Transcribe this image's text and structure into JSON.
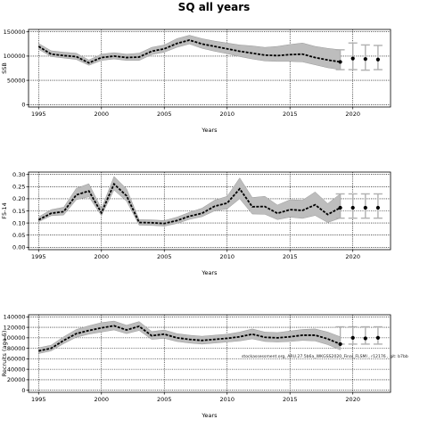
{
  "figure": {
    "title": "SQ all years",
    "watermark": "stockassessment.org, ARU.27.5b6a_WKGSS2020_Final_FLSMI , r12176 , git: b7bb"
  },
  "colors": {
    "band": "#bdbdbd",
    "band_edge": "#9a9a9a",
    "line": "#000000",
    "forecast_bar": "#b0b0b0",
    "grid": "#000000"
  },
  "chart_data": [
    {
      "type": "line",
      "title": "",
      "xlabel": "Years",
      "ylabel": "SSB",
      "xlim": [
        1994.2,
        2023.0
      ],
      "ylim": [
        -5000,
        155000
      ],
      "grid": true,
      "xticks": [
        1995,
        2000,
        2005,
        2010,
        2015,
        2020
      ],
      "yticks": [
        0,
        50000,
        100000,
        150000
      ],
      "x": [
        1995,
        1996,
        1997,
        1998,
        1999,
        2000,
        2001,
        2002,
        2003,
        2004,
        2005,
        2006,
        2007,
        2008,
        2009,
        2010,
        2011,
        2012,
        2013,
        2014,
        2015,
        2016,
        2017,
        2018,
        2019
      ],
      "series": [
        {
          "values": [
            120000,
            104000,
            101000,
            99000,
            86000,
            97000,
            100000,
            97000,
            98000,
            110000,
            115000,
            126000,
            133000,
            125000,
            120000,
            115000,
            110000,
            106000,
            102000,
            101000,
            103000,
            104000,
            97000,
            92000,
            88000
          ],
          "lower": [
            114000,
            99000,
            96000,
            93000,
            81000,
            91000,
            94000,
            91000,
            91000,
            103000,
            108000,
            118000,
            125000,
            116000,
            110000,
            105000,
            99000,
            94000,
            90000,
            89000,
            89000,
            88000,
            82000,
            76000,
            72000
          ],
          "upper": [
            126000,
            111000,
            108000,
            106000,
            92000,
            104000,
            107000,
            104000,
            106000,
            118000,
            123000,
            136000,
            143000,
            136000,
            131000,
            127000,
            123000,
            121000,
            118000,
            120000,
            124000,
            127000,
            120000,
            116000,
            113000
          ]
        }
      ],
      "forecast": {
        "x": [
          2019,
          2020,
          2021,
          2022
        ],
        "values": [
          88000,
          95000,
          94000,
          93000
        ],
        "lower": [
          72000,
          72000,
          71000,
          72000
        ],
        "upper": [
          113000,
          127000,
          123000,
          122000
        ]
      }
    },
    {
      "type": "line",
      "title": "",
      "xlabel": "Years",
      "ylabel": "F5-14",
      "xlim": [
        1994.2,
        2023.0
      ],
      "ylim": [
        -0.01,
        0.31
      ],
      "grid": true,
      "xticks": [
        1995,
        2000,
        2005,
        2010,
        2015,
        2020
      ],
      "yticks": [
        0.0,
        0.05,
        0.1,
        0.15,
        0.2,
        0.25,
        0.3
      ],
      "ytick_labels": [
        "0.00",
        "0.05",
        "0.10",
        "0.15",
        "0.20",
        "0.25",
        "0.30"
      ],
      "x": [
        1995,
        1996,
        1997,
        1998,
        1999,
        2000,
        2001,
        2002,
        2003,
        2004,
        2005,
        2006,
        2007,
        2008,
        2009,
        2010,
        2011,
        2012,
        2013,
        2014,
        2015,
        2016,
        2017,
        2018,
        2019
      ],
      "series": [
        {
          "values": [
            0.113,
            0.14,
            0.147,
            0.216,
            0.232,
            0.142,
            0.261,
            0.212,
            0.102,
            0.101,
            0.098,
            0.11,
            0.128,
            0.14,
            0.169,
            0.182,
            0.241,
            0.167,
            0.168,
            0.14,
            0.155,
            0.152,
            0.175,
            0.135,
            0.163
          ],
          "lower": [
            0.105,
            0.13,
            0.133,
            0.196,
            0.208,
            0.13,
            0.236,
            0.19,
            0.091,
            0.09,
            0.087,
            0.098,
            0.115,
            0.126,
            0.15,
            0.158,
            0.2,
            0.137,
            0.136,
            0.114,
            0.124,
            0.119,
            0.131,
            0.102,
            0.12
          ],
          "upper": [
            0.125,
            0.155,
            0.165,
            0.243,
            0.262,
            0.159,
            0.292,
            0.241,
            0.114,
            0.113,
            0.11,
            0.124,
            0.144,
            0.161,
            0.194,
            0.21,
            0.286,
            0.205,
            0.21,
            0.174,
            0.196,
            0.194,
            0.228,
            0.18,
            0.22
          ]
        }
      ],
      "forecast": {
        "x": [
          2019,
          2020,
          2021,
          2022
        ],
        "values": [
          0.163,
          0.163,
          0.163,
          0.163
        ],
        "lower": [
          0.12,
          0.12,
          0.12,
          0.12
        ],
        "upper": [
          0.22,
          0.22,
          0.22,
          0.22
        ]
      }
    },
    {
      "type": "line",
      "title": "",
      "xlabel": "Years",
      "ylabel": "Recruits (age 5)",
      "xlim": [
        1994.2,
        2023.0
      ],
      "ylim": [
        -4000,
        144000
      ],
      "grid": true,
      "xticks": [
        1995,
        2000,
        2005,
        2010,
        2015,
        2020
      ],
      "yticks": [
        0,
        20000,
        40000,
        60000,
        80000,
        100000,
        120000,
        140000
      ],
      "x": [
        1995,
        1996,
        1997,
        1998,
        1999,
        2000,
        2001,
        2002,
        2003,
        2004,
        2005,
        2006,
        2007,
        2008,
        2009,
        2010,
        2011,
        2012,
        2013,
        2014,
        2015,
        2016,
        2017,
        2018,
        2019
      ],
      "series": [
        {
          "values": [
            75000,
            80000,
            95000,
            108000,
            114000,
            119000,
            123000,
            115000,
            122000,
            104000,
            107000,
            100000,
            97000,
            95000,
            97000,
            99000,
            102000,
            107000,
            101000,
            100000,
            102000,
            105000,
            105000,
            98000,
            88000
          ],
          "lower": [
            70000,
            75000,
            89000,
            101000,
            107000,
            111000,
            115000,
            108000,
            114000,
            97000,
            99000,
            93000,
            90000,
            88000,
            90000,
            92000,
            94000,
            98000,
            93000,
            92000,
            93000,
            95000,
            94000,
            87000,
            77000
          ],
          "upper": [
            81000,
            86000,
            102000,
            116000,
            123000,
            129000,
            132000,
            124000,
            131000,
            112000,
            115000,
            108000,
            105000,
            103000,
            105000,
            107000,
            111000,
            117000,
            111000,
            110000,
            113000,
            116000,
            117000,
            111000,
            102000
          ]
        }
      ],
      "forecast": {
        "x": [
          2019,
          2020,
          2021,
          2022
        ],
        "values": [
          88000,
          100000,
          99000,
          100000
        ],
        "lower": [
          88000,
          88000,
          88000,
          88000
        ],
        "upper": [
          121000,
          121000,
          121000,
          121000
        ]
      }
    }
  ]
}
